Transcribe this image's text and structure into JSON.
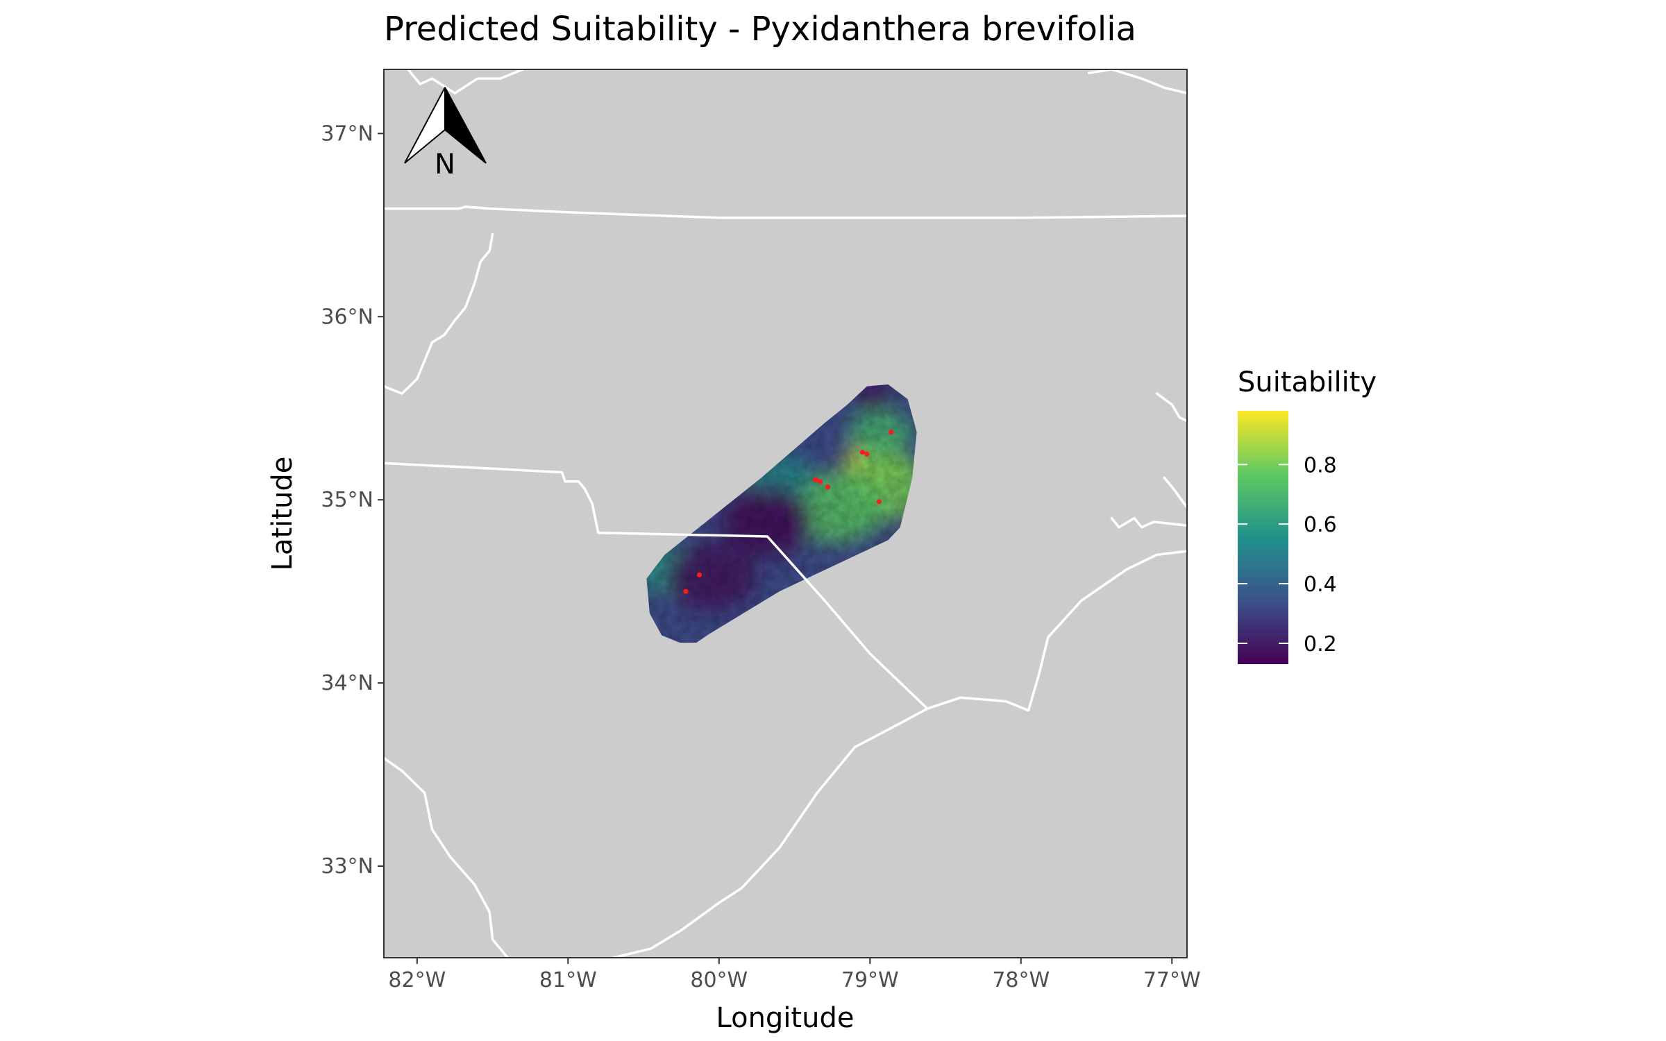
{
  "chart_data": {
    "type": "map",
    "title": "Predicted Suitability - Pyxidanthera brevifolia",
    "xlabel": "Longitude",
    "ylabel": "Latitude",
    "x_ticks": [
      "82°W",
      "81°W",
      "80°W",
      "79°W",
      "78°W",
      "77°W"
    ],
    "y_ticks": [
      "33°N",
      "34°N",
      "35°N",
      "36°N",
      "37°N"
    ],
    "x_tick_values": [
      -82,
      -81,
      -80,
      -79,
      -78,
      -77
    ],
    "y_tick_values": [
      33,
      34,
      35,
      36,
      37
    ],
    "xlim": [
      -82.22,
      -76.9
    ],
    "ylim": [
      32.5,
      37.35
    ],
    "legend": {
      "title": "Suitability",
      "labels": [
        "0.8",
        "0.6",
        "0.4",
        "0.2"
      ],
      "values": [
        0.8,
        0.6,
        0.4,
        0.2
      ],
      "range": [
        0.13,
        0.98
      ],
      "placement": "right",
      "colors": [
        "#440154",
        "#3b528b",
        "#21918c",
        "#5ec962",
        "#fde725"
      ]
    },
    "background_color": "#cccccc",
    "boundary_color": "#ffffff",
    "point_color": "#ff1a1a",
    "north_arrow": {
      "label": "N",
      "placement": "top-left"
    },
    "occurrences": [
      {
        "lon": -79.05,
        "lat": 35.26
      },
      {
        "lon": -79.02,
        "lat": 35.25
      },
      {
        "lon": -78.86,
        "lat": 35.37
      },
      {
        "lon": -79.36,
        "lat": 35.11
      },
      {
        "lon": -79.33,
        "lat": 35.1
      },
      {
        "lon": -79.28,
        "lat": 35.07
      },
      {
        "lon": -78.94,
        "lat": 34.99
      },
      {
        "lon": -80.13,
        "lat": 34.59
      },
      {
        "lon": -80.22,
        "lat": 34.5
      }
    ],
    "prediction_region": [
      [
        -79.15,
        35.52
      ],
      [
        -79.02,
        35.62
      ],
      [
        -78.88,
        35.63
      ],
      [
        -78.75,
        35.55
      ],
      [
        -78.69,
        35.37
      ],
      [
        -78.72,
        35.12
      ],
      [
        -78.8,
        34.85
      ],
      [
        -78.88,
        34.78
      ],
      [
        -79.6,
        34.5
      ],
      [
        -80.06,
        34.27
      ],
      [
        -80.15,
        34.22
      ],
      [
        -80.26,
        34.22
      ],
      [
        -80.38,
        34.26
      ],
      [
        -80.46,
        34.38
      ],
      [
        -80.48,
        34.57
      ],
      [
        -80.36,
        34.7
      ],
      [
        -79.72,
        35.12
      ],
      [
        -79.3,
        35.42
      ]
    ],
    "suitability_hotspots": [
      {
        "lon": -78.97,
        "lat": 35.2,
        "value": 0.96,
        "radius_deg": 0.2
      },
      {
        "lon": -78.9,
        "lat": 35.07,
        "value": 0.8,
        "radius_deg": 0.3
      },
      {
        "lon": -79.22,
        "lat": 34.96,
        "value": 0.74,
        "radius_deg": 0.32
      },
      {
        "lon": -78.93,
        "lat": 35.36,
        "value": 0.68,
        "radius_deg": 0.22
      },
      {
        "lon": -80.33,
        "lat": 34.62,
        "value": 0.58,
        "radius_deg": 0.22
      },
      {
        "lon": -79.6,
        "lat": 35.12,
        "value": 0.52,
        "radius_deg": 0.22
      },
      {
        "lon": -80.05,
        "lat": 34.58,
        "value": 0.18,
        "radius_deg": 0.3
      },
      {
        "lon": -79.68,
        "lat": 34.88,
        "value": 0.15,
        "radius_deg": 0.3
      },
      {
        "lon": -78.98,
        "lat": 35.56,
        "value": 0.14,
        "radius_deg": 0.12
      }
    ],
    "boundaries": [
      {
        "name": "nc-va-line",
        "coords": [
          [
            -82.22,
            36.59
          ],
          [
            -81.72,
            36.59
          ],
          [
            -81.68,
            36.6
          ],
          [
            -81.52,
            36.59
          ],
          [
            -81.0,
            36.57
          ],
          [
            -80.0,
            36.54
          ],
          [
            -79.0,
            36.54
          ],
          [
            -78.0,
            36.54
          ],
          [
            -76.9,
            36.55
          ]
        ]
      },
      {
        "name": "ky-va-line",
        "coords": [
          [
            -82.22,
            35.62
          ],
          [
            -82.1,
            35.58
          ],
          [
            -82.0,
            35.66
          ],
          [
            -81.9,
            35.86
          ],
          [
            -81.82,
            35.9
          ],
          [
            -81.75,
            35.98
          ],
          [
            -81.68,
            36.05
          ],
          [
            -81.62,
            36.18
          ],
          [
            -81.58,
            36.3
          ],
          [
            -81.52,
            36.36
          ],
          [
            -81.5,
            36.45
          ]
        ]
      },
      {
        "name": "nc-sc-line",
        "coords": [
          [
            -82.22,
            35.2
          ],
          [
            -81.5,
            35.17
          ],
          [
            -81.04,
            35.15
          ],
          [
            -81.02,
            35.1
          ],
          [
            -80.93,
            35.1
          ],
          [
            -80.89,
            35.06
          ],
          [
            -80.84,
            34.98
          ],
          [
            -80.8,
            34.82
          ],
          [
            -79.68,
            34.8
          ],
          [
            -79.3,
            34.45
          ],
          [
            -79.0,
            34.16
          ],
          [
            -78.62,
            33.86
          ]
        ]
      },
      {
        "name": "ga-sc-line",
        "coords": [
          [
            -82.22,
            33.59
          ],
          [
            -82.1,
            33.52
          ],
          [
            -81.95,
            33.4
          ],
          [
            -81.9,
            33.2
          ],
          [
            -81.78,
            33.05
          ],
          [
            -81.62,
            32.9
          ],
          [
            -81.52,
            32.75
          ],
          [
            -81.5,
            32.6
          ],
          [
            -81.4,
            32.5
          ]
        ]
      },
      {
        "name": "atlantic-coast",
        "coords": [
          [
            -80.7,
            32.5
          ],
          [
            -80.45,
            32.55
          ],
          [
            -80.25,
            32.65
          ],
          [
            -80.0,
            32.8
          ],
          [
            -79.85,
            32.88
          ],
          [
            -79.6,
            33.1
          ],
          [
            -79.35,
            33.4
          ],
          [
            -79.1,
            33.65
          ],
          [
            -78.8,
            33.78
          ],
          [
            -78.62,
            33.86
          ],
          [
            -78.4,
            33.92
          ],
          [
            -78.1,
            33.9
          ],
          [
            -77.95,
            33.85
          ],
          [
            -77.88,
            34.05
          ],
          [
            -77.82,
            34.25
          ],
          [
            -77.6,
            34.45
          ],
          [
            -77.3,
            34.62
          ],
          [
            -77.1,
            34.7
          ],
          [
            -76.9,
            34.72
          ]
        ]
      },
      {
        "name": "top-left-shore",
        "coords": [
          [
            -82.06,
            37.35
          ],
          [
            -81.98,
            37.27
          ],
          [
            -81.9,
            37.3
          ],
          [
            -81.75,
            37.22
          ],
          [
            -81.6,
            37.3
          ],
          [
            -81.45,
            37.3
          ],
          [
            -81.3,
            37.35
          ]
        ]
      },
      {
        "name": "top-right-shore",
        "coords": [
          [
            -77.55,
            37.33
          ],
          [
            -77.4,
            37.35
          ],
          [
            -77.2,
            37.3
          ],
          [
            -77.05,
            37.25
          ],
          [
            -76.9,
            37.22
          ]
        ]
      },
      {
        "name": "neuse-estuary",
        "coords": [
          [
            -77.4,
            34.9
          ],
          [
            -77.35,
            34.85
          ],
          [
            -77.25,
            34.9
          ],
          [
            -77.2,
            34.85
          ],
          [
            -77.12,
            34.88
          ],
          [
            -76.9,
            34.86
          ]
        ]
      },
      {
        "name": "east-inlet",
        "coords": [
          [
            -77.05,
            35.12
          ],
          [
            -76.98,
            35.05
          ],
          [
            -76.92,
            34.98
          ],
          [
            -76.9,
            34.96
          ]
        ]
      },
      {
        "name": "north-east-inlet",
        "coords": [
          [
            -77.1,
            35.58
          ],
          [
            -77.0,
            35.52
          ],
          [
            -76.95,
            35.45
          ],
          [
            -76.9,
            35.43
          ]
        ]
      }
    ]
  }
}
